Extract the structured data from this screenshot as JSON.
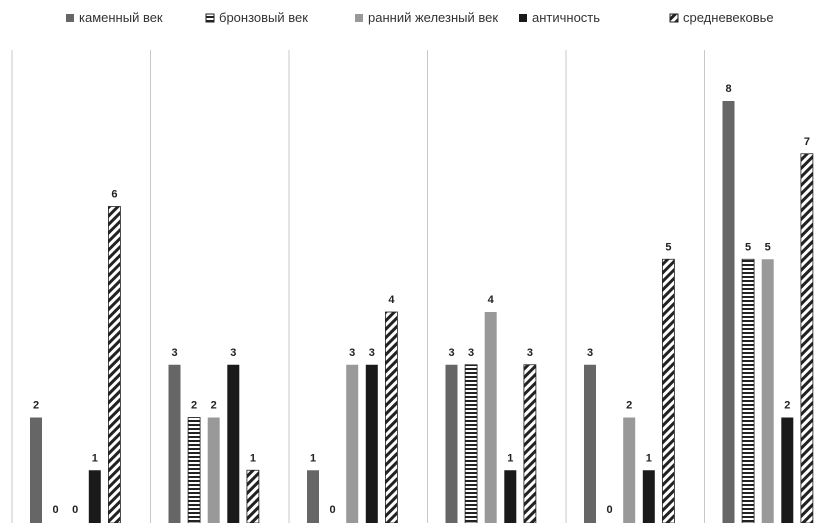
{
  "chart_data": {
    "type": "bar",
    "title": "",
    "xlabel": "",
    "ylabel": "",
    "ylim": [
      0,
      8
    ],
    "grid": false,
    "legend_position": "top",
    "categories": [
      "",
      "",
      "",
      "",
      "",
      ""
    ],
    "series": [
      {
        "name": "каменный век",
        "pattern": "solid",
        "color": "#666666",
        "values": [
          2,
          3,
          1,
          3,
          3,
          8
        ]
      },
      {
        "name": "бронзовый век",
        "pattern": "horizontal-stripes",
        "color": "#222222",
        "values": [
          0,
          2,
          0,
          3,
          0,
          5
        ]
      },
      {
        "name": "ранний железный век",
        "pattern": "solid",
        "color": "#999999",
        "values": [
          0,
          2,
          3,
          4,
          2,
          5
        ]
      },
      {
        "name": "античность",
        "pattern": "solid",
        "color": "#1a1a1a",
        "values": [
          1,
          3,
          3,
          1,
          1,
          2
        ]
      },
      {
        "name": "средневековье",
        "pattern": "diagonal-stripes",
        "color": "#222222",
        "values": [
          6,
          1,
          4,
          3,
          5,
          7
        ]
      }
    ]
  }
}
